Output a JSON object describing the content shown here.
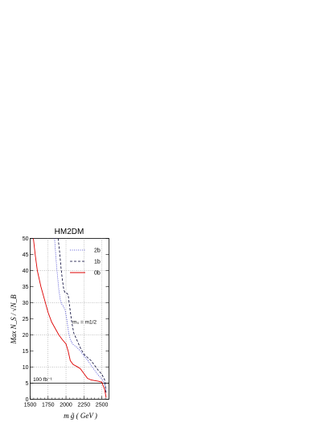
{
  "chart_data": {
    "type": "line",
    "title": "HM2DM",
    "xlabel": "m g̃ ( GeV )",
    "ylabel": "Max N_S / √N_B",
    "xlim": [
      1500,
      2600
    ],
    "ylim": [
      0,
      50
    ],
    "xticks": [
      "1500",
      "1750",
      "2000",
      "2250",
      "2500"
    ],
    "xtick_values": [
      1500,
      1750,
      2000,
      2250,
      2500
    ],
    "yticks": [
      "0",
      "5",
      "10",
      "15",
      "20",
      "25",
      "30",
      "35",
      "40",
      "45",
      "50"
    ],
    "ytick_values": [
      0,
      5,
      10,
      15,
      20,
      25,
      30,
      35,
      40,
      45,
      50
    ],
    "grid": true,
    "legend_position": "top-right",
    "series": [
      {
        "name": "2b",
        "color": "#3333cc",
        "style": "dotted",
        "x": [
          1840,
          1870,
          1900,
          1920,
          1940,
          1960,
          1985,
          2010,
          2035,
          2060,
          2100,
          2150,
          2200,
          2250,
          2300,
          2350,
          2400,
          2450,
          2500,
          2540,
          2560
        ],
        "y": [
          50,
          41,
          34,
          31,
          29.5,
          29,
          28,
          25,
          21,
          18.5,
          17,
          16.2,
          15,
          13.5,
          12.2,
          10.5,
          9,
          7.5,
          6.3,
          5,
          2
        ]
      },
      {
        "name": "1b",
        "color": "#000033",
        "style": "dashed",
        "x": [
          1890,
          1910,
          1930,
          1950,
          1970,
          1990,
          2010,
          2030,
          2050,
          2080,
          2110,
          2150,
          2200,
          2250,
          2300,
          2350,
          2400,
          2450,
          2500,
          2540,
          2560
        ],
        "y": [
          50,
          46,
          41,
          37,
          34,
          33,
          33,
          32.5,
          29,
          24,
          20.5,
          18.5,
          16,
          14,
          13,
          12,
          10.5,
          9,
          7.8,
          6,
          2
        ]
      },
      {
        "name": "0b",
        "color": "#dd0000",
        "style": "solid",
        "x": [
          1545,
          1570,
          1600,
          1650,
          1700,
          1750,
          1800,
          1850,
          1900,
          1950,
          2000,
          2030,
          2060,
          2100,
          2150,
          2200,
          2250,
          2300,
          2350,
          2400,
          2450,
          2500,
          2540,
          2560
        ],
        "y": [
          50,
          45,
          40,
          35,
          31,
          27,
          24,
          22,
          20,
          18.5,
          17.2,
          15,
          12,
          10.8,
          10.2,
          9.5,
          8,
          6.5,
          6,
          5.8,
          5.6,
          5.3,
          3,
          0.5
        ]
      }
    ],
    "annotations": [
      {
        "text": "m₀ = m1/2",
        "x": 2090,
        "y": 23.5
      },
      {
        "text": "100 fb⁻¹",
        "x": 1540,
        "y": 5.6
      }
    ],
    "reference_line": {
      "y": 5
    }
  }
}
